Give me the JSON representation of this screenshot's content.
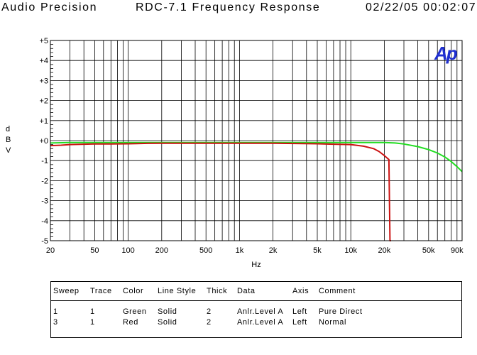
{
  "header": {
    "left": "Audio Precision",
    "center": "RDC-7.1 Frequency Response",
    "right": "02/22/05 00:02:07"
  },
  "logo": {
    "text": "Ap",
    "color": "#1f2fd0"
  },
  "chart_data": {
    "type": "line",
    "title": "RDC-7.1 Frequency Response",
    "xlabel": "Hz",
    "ylabel": "d\nB\nV",
    "x_scale": "log",
    "xlim": [
      20,
      100000
    ],
    "ylim": [
      -5,
      5
    ],
    "grid": true,
    "x_ticks": [
      20,
      50,
      100,
      200,
      500,
      1000,
      2000,
      5000,
      10000,
      20000,
      50000,
      90000
    ],
    "x_tick_labels": [
      "20",
      "50",
      "100",
      "200",
      "500",
      "1k",
      "2k",
      "5k",
      "10k",
      "20k",
      "50k",
      "90k"
    ],
    "y_ticks": [
      5,
      4,
      3,
      2,
      1,
      0,
      -1,
      -2,
      -3,
      -4,
      -5
    ],
    "y_tick_labels": [
      "+5",
      "+4",
      "+3",
      "+2",
      "+1",
      "+0",
      "-1",
      "-2",
      "-3",
      "-4",
      "-5"
    ],
    "series": [
      {
        "name": "Pure Direct",
        "color": "#22dd22",
        "x": [
          20,
          30,
          50,
          100,
          200,
          500,
          1000,
          2000,
          5000,
          10000,
          15000,
          20000,
          25000,
          30000,
          40000,
          50000,
          60000,
          70000,
          80000,
          90000,
          100000
        ],
        "y": [
          -0.12,
          -0.1,
          -0.1,
          -0.1,
          -0.1,
          -0.1,
          -0.1,
          -0.1,
          -0.1,
          -0.1,
          -0.1,
          -0.1,
          -0.12,
          -0.17,
          -0.3,
          -0.45,
          -0.62,
          -0.82,
          -1.05,
          -1.3,
          -1.55
        ]
      },
      {
        "name": "Normal",
        "color": "#cc1111",
        "x": [
          20,
          25,
          30,
          40,
          50,
          70,
          100,
          120,
          150,
          200,
          500,
          1000,
          2000,
          5000,
          7000,
          10000,
          13000,
          16000,
          18000,
          20000,
          21000,
          22000,
          22500,
          22700,
          23000
        ],
        "y": [
          -0.25,
          -0.23,
          -0.2,
          -0.18,
          -0.17,
          -0.17,
          -0.16,
          -0.15,
          -0.14,
          -0.13,
          -0.13,
          -0.13,
          -0.13,
          -0.16,
          -0.18,
          -0.2,
          -0.28,
          -0.4,
          -0.55,
          -0.75,
          -0.85,
          -0.95,
          -5,
          -5,
          -5
        ]
      }
    ]
  },
  "legend_table": {
    "headers": [
      "Sweep",
      "Trace",
      "Color",
      "Line Style",
      "Thick",
      "Data",
      "Axis",
      "Comment"
    ],
    "rows": [
      [
        "1",
        "1",
        "Green",
        "Solid",
        "2",
        "Anlr.Level A",
        "Left",
        "Pure Direct"
      ],
      [
        "3",
        "1",
        "Red",
        "Solid",
        "2",
        "Anlr.Level A",
        "Left",
        "Normal"
      ]
    ]
  }
}
